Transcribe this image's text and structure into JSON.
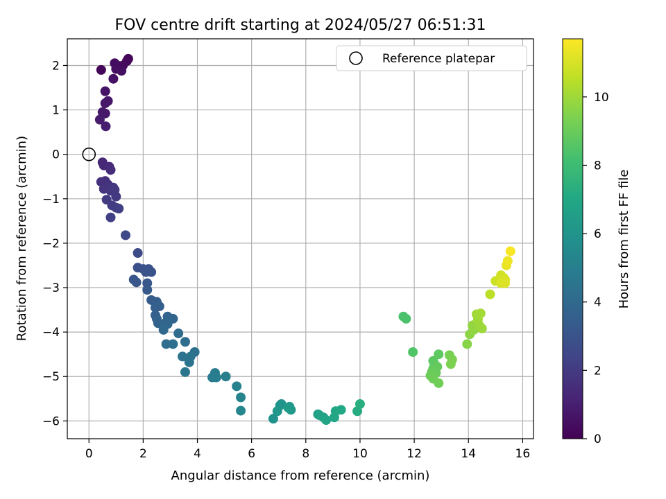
{
  "chart_data": {
    "type": "scatter",
    "title": "FOV centre drift starting at 2024/05/27 06:51:31",
    "xlabel": "Angular distance from reference (arcmin)",
    "ylabel": "Rotation from reference (arcmin)",
    "xlim": [
      -0.8,
      16.4
    ],
    "ylim": [
      -6.4,
      2.6
    ],
    "x_ticks": [
      "0",
      "2",
      "4",
      "6",
      "8",
      "10",
      "12",
      "14",
      "16"
    ],
    "y_ticks": [
      "2",
      "1",
      "0",
      "−1",
      "−2",
      "−3",
      "−4",
      "−5",
      "−6"
    ],
    "grid": true,
    "legend": {
      "placement": "top-right",
      "entries": [
        "Reference platepar"
      ]
    },
    "reference_point": {
      "x": 0,
      "y": 0,
      "marker": "open-circle",
      "label": "Reference platepar"
    },
    "colorbar": {
      "label": "Hours from first FF file",
      "colormap": "viridis",
      "range": [
        0,
        11.7
      ],
      "ticks": [
        "0",
        "2",
        "4",
        "6",
        "8",
        "10"
      ]
    },
    "series": [
      {
        "points": [
          [
            0.45,
            1.9,
            0.1
          ],
          [
            1.45,
            2.15,
            0.2
          ],
          [
            1.4,
            2.1,
            0.25
          ],
          [
            1.25,
            2.0,
            0.3
          ],
          [
            1.05,
            2.0,
            0.35
          ],
          [
            0.95,
            2.05,
            0.4
          ],
          [
            1.0,
            1.92,
            0.45
          ],
          [
            1.2,
            1.88,
            0.5
          ],
          [
            0.9,
            1.7,
            0.55
          ],
          [
            0.6,
            1.42,
            0.65
          ],
          [
            0.7,
            1.2,
            0.7
          ],
          [
            0.6,
            1.15,
            0.75
          ],
          [
            0.5,
            0.95,
            0.8
          ],
          [
            0.6,
            0.92,
            0.85
          ],
          [
            0.4,
            0.78,
            0.9
          ],
          [
            0.62,
            0.63,
            0.95
          ],
          [
            0.5,
            -0.18,
            1.3
          ],
          [
            0.55,
            -0.25,
            1.35
          ],
          [
            0.75,
            -0.28,
            1.4
          ],
          [
            0.8,
            -0.35,
            1.45
          ],
          [
            0.45,
            -0.62,
            1.6
          ],
          [
            0.6,
            -0.6,
            1.65
          ],
          [
            0.7,
            -0.68,
            1.7
          ],
          [
            0.55,
            -0.78,
            1.75
          ],
          [
            0.9,
            -0.75,
            1.8
          ],
          [
            0.8,
            -0.82,
            1.85
          ],
          [
            0.95,
            -0.8,
            1.9
          ],
          [
            1.0,
            -0.95,
            1.95
          ],
          [
            0.65,
            -1.02,
            2.0
          ],
          [
            0.85,
            -1.15,
            2.05
          ],
          [
            1.0,
            -1.2,
            2.1
          ],
          [
            1.1,
            -1.22,
            2.15
          ],
          [
            0.8,
            -1.42,
            2.2
          ],
          [
            1.35,
            -1.82,
            2.5
          ],
          [
            1.8,
            -2.22,
            2.7
          ],
          [
            1.8,
            -2.55,
            2.85
          ],
          [
            2.0,
            -2.58,
            2.9
          ],
          [
            2.2,
            -2.58,
            2.95
          ],
          [
            2.1,
            -2.65,
            3.0
          ],
          [
            2.3,
            -2.65,
            3.05
          ],
          [
            1.65,
            -2.82,
            3.1
          ],
          [
            1.75,
            -2.88,
            3.15
          ],
          [
            2.15,
            -2.9,
            3.2
          ],
          [
            2.15,
            -3.05,
            3.25
          ],
          [
            2.3,
            -3.28,
            3.4
          ],
          [
            2.5,
            -3.32,
            3.45
          ],
          [
            2.45,
            -3.45,
            3.5
          ],
          [
            2.6,
            -3.42,
            3.55
          ],
          [
            2.45,
            -3.62,
            3.6
          ],
          [
            2.5,
            -3.7,
            3.65
          ],
          [
            2.55,
            -3.8,
            3.7
          ],
          [
            2.9,
            -3.65,
            3.75
          ],
          [
            3.1,
            -3.7,
            3.8
          ],
          [
            2.8,
            -3.8,
            3.85
          ],
          [
            2.9,
            -3.82,
            3.9
          ],
          [
            2.75,
            -3.95,
            3.95
          ],
          [
            3.3,
            -4.03,
            4.1
          ],
          [
            3.55,
            -4.22,
            4.15
          ],
          [
            2.85,
            -4.27,
            4.2
          ],
          [
            3.1,
            -4.27,
            4.25
          ],
          [
            3.9,
            -4.45,
            4.35
          ],
          [
            3.45,
            -4.55,
            4.4
          ],
          [
            3.75,
            -4.55,
            4.45
          ],
          [
            3.7,
            -4.68,
            4.5
          ],
          [
            3.55,
            -4.9,
            4.55
          ],
          [
            4.65,
            -4.92,
            4.8
          ],
          [
            4.55,
            -5.02,
            4.85
          ],
          [
            4.7,
            -5.02,
            4.9
          ],
          [
            5.05,
            -5.0,
            5.0
          ],
          [
            5.45,
            -5.22,
            5.15
          ],
          [
            5.6,
            -5.47,
            5.25
          ],
          [
            5.6,
            -5.77,
            5.35
          ],
          [
            6.8,
            -5.95,
            5.9
          ],
          [
            7.05,
            -5.65,
            6.0
          ],
          [
            7.1,
            -5.62,
            6.05
          ],
          [
            6.95,
            -5.78,
            6.1
          ],
          [
            7.4,
            -5.68,
            6.2
          ],
          [
            7.45,
            -5.75,
            6.25
          ],
          [
            7.35,
            -5.7,
            6.3
          ],
          [
            8.45,
            -5.85,
            6.65
          ],
          [
            8.5,
            -5.87,
            6.7
          ],
          [
            8.65,
            -5.92,
            6.75
          ],
          [
            8.75,
            -5.98,
            6.8
          ],
          [
            9.05,
            -5.92,
            6.9
          ],
          [
            9.1,
            -5.78,
            6.95
          ],
          [
            9.3,
            -5.75,
            7.0
          ],
          [
            9.9,
            -5.78,
            7.2
          ],
          [
            10.0,
            -5.62,
            7.3
          ],
          [
            11.6,
            -3.65,
            8.3
          ],
          [
            11.7,
            -3.7,
            8.35
          ],
          [
            11.95,
            -4.45,
            8.5
          ],
          [
            12.7,
            -4.65,
            8.7
          ],
          [
            12.9,
            -4.5,
            8.75
          ],
          [
            12.75,
            -4.72,
            8.8
          ],
          [
            12.7,
            -4.82,
            8.85
          ],
          [
            12.85,
            -4.78,
            8.9
          ],
          [
            12.65,
            -4.9,
            8.95
          ],
          [
            12.8,
            -4.92,
            9.0
          ],
          [
            12.6,
            -4.98,
            9.05
          ],
          [
            12.7,
            -5.05,
            9.1
          ],
          [
            12.9,
            -5.15,
            9.15
          ],
          [
            13.3,
            -4.52,
            9.3
          ],
          [
            13.4,
            -4.62,
            9.35
          ],
          [
            13.35,
            -4.72,
            9.4
          ],
          [
            13.95,
            -4.27,
            9.6
          ],
          [
            14.05,
            -4.05,
            9.7
          ],
          [
            14.2,
            -3.95,
            9.75
          ],
          [
            14.15,
            -3.85,
            9.8
          ],
          [
            14.3,
            -3.8,
            9.85
          ],
          [
            14.4,
            -3.85,
            9.9
          ],
          [
            14.5,
            -3.92,
            9.95
          ],
          [
            14.35,
            -3.72,
            10.0
          ],
          [
            14.3,
            -3.6,
            10.05
          ],
          [
            14.45,
            -3.58,
            10.1
          ],
          [
            14.8,
            -3.15,
            10.5
          ],
          [
            15.0,
            -2.85,
            10.8
          ],
          [
            15.2,
            -2.72,
            10.9
          ],
          [
            15.3,
            -2.78,
            10.95
          ],
          [
            15.35,
            -2.82,
            11.0
          ],
          [
            15.2,
            -2.9,
            11.05
          ],
          [
            15.35,
            -2.9,
            11.1
          ],
          [
            15.4,
            -2.5,
            11.3
          ],
          [
            15.45,
            -2.4,
            11.4
          ],
          [
            15.55,
            -2.18,
            11.6
          ]
        ]
      }
    ]
  }
}
